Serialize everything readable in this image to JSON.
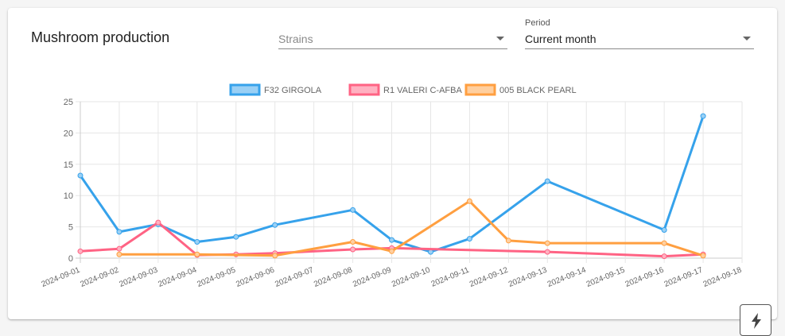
{
  "header": {
    "title": "Mushroom production"
  },
  "filters": {
    "strains": {
      "placeholder": "Strains",
      "value": ""
    },
    "period": {
      "label": "Period",
      "value": "Current month"
    }
  },
  "chart_data": {
    "type": "line",
    "x": [
      "2024-09-01",
      "2024-09-02",
      "2024-09-03",
      "2024-09-04",
      "2024-09-05",
      "2024-09-06",
      "2024-09-07",
      "2024-09-08",
      "2024-09-09",
      "2024-09-10",
      "2024-09-11",
      "2024-09-12",
      "2024-09-13",
      "2024-09-14",
      "2024-09-15",
      "2024-09-16",
      "2024-09-17",
      "2024-09-18"
    ],
    "ylim": [
      0,
      25
    ],
    "yticks": [
      0,
      5,
      10,
      15,
      20,
      25
    ],
    "grid": true,
    "legend_position": "top",
    "series": [
      {
        "name": "F32 GIRGOLA",
        "color": "#36a2eb",
        "fill": "#9ad0f5",
        "points": [
          [
            0,
            13.2
          ],
          [
            1,
            4.2
          ],
          [
            2,
            5.4
          ],
          [
            3,
            2.6
          ],
          [
            4,
            3.4
          ],
          [
            5,
            5.3
          ],
          [
            7,
            7.7
          ],
          [
            8,
            2.9
          ],
          [
            9,
            1.0
          ],
          [
            10,
            3.1
          ],
          [
            12,
            12.3
          ],
          [
            15,
            4.5
          ],
          [
            16,
            22.7
          ]
        ]
      },
      {
        "name": "R1 VALERI C-AFBA",
        "color": "#ff6384",
        "fill": "#ffb1c1",
        "points": [
          [
            0,
            1.1
          ],
          [
            1,
            1.5
          ],
          [
            2,
            5.7
          ],
          [
            3,
            0.5
          ],
          [
            4,
            0.6
          ],
          [
            5,
            0.8
          ],
          [
            7,
            1.4
          ],
          [
            8,
            1.6
          ],
          [
            12,
            1.0
          ],
          [
            15,
            0.3
          ],
          [
            16,
            0.6
          ]
        ]
      },
      {
        "name": "005 BLACK PEARL",
        "color": "#ff9f40",
        "fill": "#ffcf9f",
        "points": [
          [
            1,
            0.6
          ],
          [
            3,
            0.6
          ],
          [
            5,
            0.4
          ],
          [
            7,
            2.6
          ],
          [
            8,
            1.1
          ],
          [
            10,
            9.1
          ],
          [
            11,
            2.8
          ],
          [
            12,
            2.4
          ],
          [
            15,
            2.4
          ],
          [
            16,
            0.4
          ]
        ]
      }
    ]
  },
  "fab": {
    "icon": "lightning-icon"
  }
}
